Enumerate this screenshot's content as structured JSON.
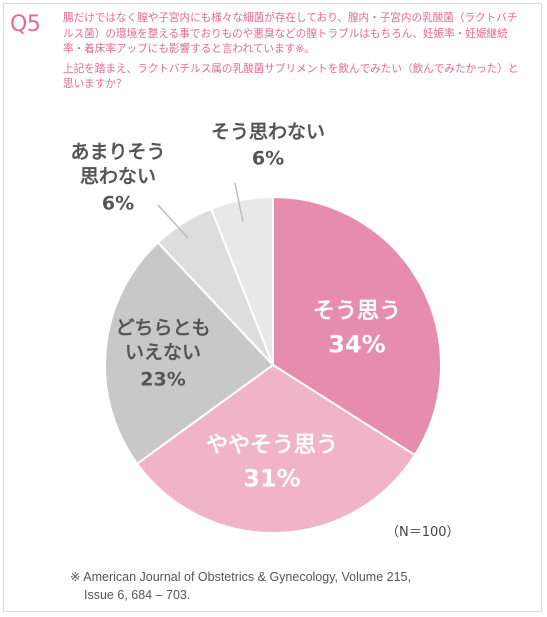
{
  "question": {
    "number": "Q5",
    "paragraph1": "腸だけではなく膣や子宮内にも様々な細菌が存在しており、膣内・子宮内の乳酸菌（ラクトバチルス菌）の環境を整える事でおりものや悪臭などの膣トラブルはもちろん、妊娠率・妊娠継続率・着床率アップにも影響すると言われています※。",
    "paragraph2": "上記を踏まえ、ラクトバチルス属の乳酸菌サプリメントを飲んでみたい（飲んでみたかった）と思いますか？"
  },
  "sample_size": "（N＝100）",
  "source_note": {
    "line1": "※ American Journal of Obstetrics & Gynecology, Volume 215,",
    "line2": "Issue 6, 684 – 703."
  },
  "chart_data": {
    "type": "pie",
    "title": "",
    "unit": "%",
    "slices": [
      {
        "label": "そう思う",
        "value": 34,
        "value_text": "34%",
        "color": "#e68cad",
        "text_color": "#ffffff"
      },
      {
        "label": "ややそう思う",
        "value": 31,
        "value_text": "31%",
        "color": "#f0b3c7",
        "text_color": "#ffffff"
      },
      {
        "label": "どちらともいえない",
        "value": 23,
        "value_text": "23%",
        "color": "#c8c8c8",
        "text_color": "#555555"
      },
      {
        "label": "あまりそう思わない",
        "value": 6,
        "value_text": "6%",
        "color": "#dddddd",
        "text_color": "#555555"
      },
      {
        "label": "そう思わない",
        "value": 6,
        "value_text": "6%",
        "color": "#e8e8e8",
        "text_color": "#555555"
      }
    ]
  }
}
